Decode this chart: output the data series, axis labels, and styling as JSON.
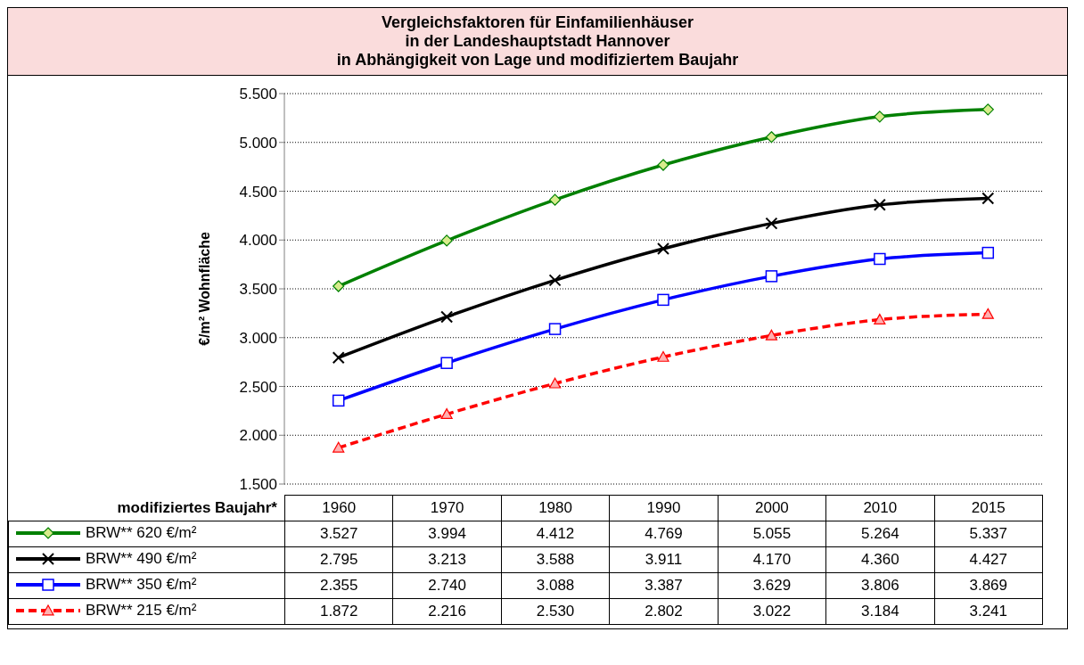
{
  "chart_data": {
    "type": "line",
    "title": "Vergleichsfaktoren für Einfamilienhäuser\nin der Landeshauptstadt Hannover\nin Abhängigkeit von Lage und modifiziertem Baujahr",
    "ylabel": "€/m² Wohnfläche",
    "xlabel": "modifiziertes Baujahr*",
    "categories": [
      "1960",
      "1970",
      "1980",
      "1990",
      "2000",
      "2010",
      "2015"
    ],
    "ylim": [
      1500,
      5500
    ],
    "yticks": [
      {
        "value": 1500,
        "label": "1.500"
      },
      {
        "value": 2000,
        "label": "2.000"
      },
      {
        "value": 2500,
        "label": "2.500"
      },
      {
        "value": 3000,
        "label": "3.000"
      },
      {
        "value": 3500,
        "label": "3.500"
      },
      {
        "value": 4000,
        "label": "4.000"
      },
      {
        "value": 4500,
        "label": "4.500"
      },
      {
        "value": 5000,
        "label": "5.000"
      },
      {
        "value": 5500,
        "label": "5.500"
      }
    ],
    "grid": "y",
    "legend": "bottom left",
    "series": [
      {
        "name": "BRW** 620 €/m²",
        "color": "#008000",
        "marker": "diamond",
        "line_style": "solid",
        "values": [
          3527,
          3994,
          4412,
          4769,
          5055,
          5264,
          5337
        ],
        "value_labels": [
          "3.527",
          "3.994",
          "4.412",
          "4.769",
          "5.055",
          "5.264",
          "5.337"
        ]
      },
      {
        "name": "BRW** 490 €/m²",
        "color": "#000000",
        "marker": "cross",
        "line_style": "solid",
        "values": [
          2795,
          3213,
          3588,
          3911,
          4170,
          4360,
          4427
        ],
        "value_labels": [
          "2.795",
          "3.213",
          "3.588",
          "3.911",
          "4.170",
          "4.360",
          "4.427"
        ]
      },
      {
        "name": "BRW** 350 €/m²",
        "color": "#0000ff",
        "marker": "square",
        "line_style": "solid",
        "values": [
          2355,
          2740,
          3088,
          3387,
          3629,
          3806,
          3869
        ],
        "value_labels": [
          "2.355",
          "2.740",
          "3.088",
          "3.387",
          "3.629",
          "3.806",
          "3.869"
        ]
      },
      {
        "name": "BRW** 215 €/m²",
        "color": "#ff0000",
        "marker": "triangle",
        "line_style": "dashed",
        "values": [
          1872,
          2216,
          2530,
          2802,
          3022,
          3184,
          3241
        ],
        "value_labels": [
          "1.872",
          "2.216",
          "2.530",
          "2.802",
          "3.022",
          "3.184",
          "3.241"
        ]
      }
    ]
  }
}
